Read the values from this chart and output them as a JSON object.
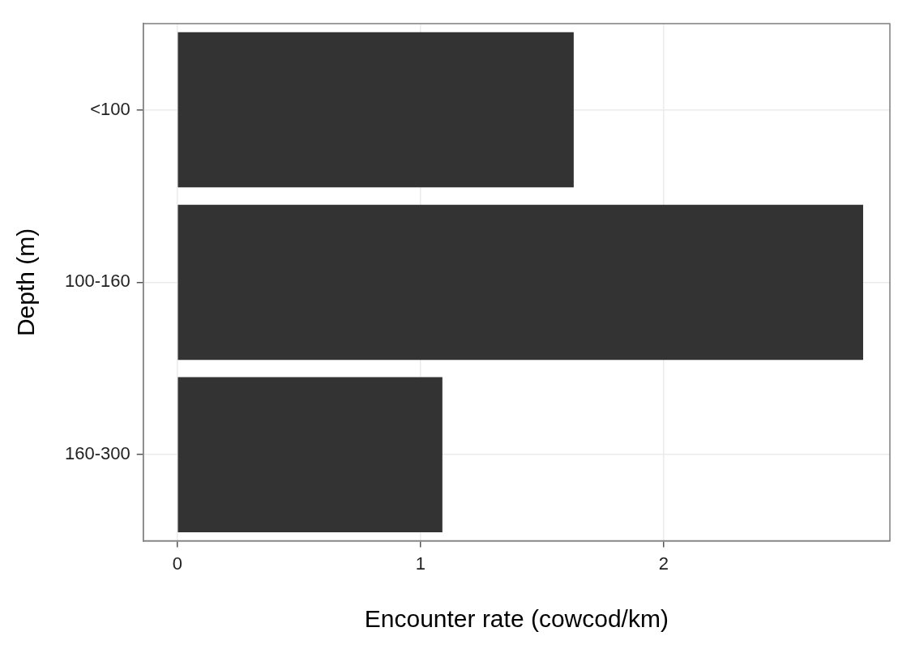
{
  "chart_data": {
    "type": "bar",
    "orientation": "horizontal",
    "xlabel": "Encounter rate (cowcod/km)",
    "ylabel": "Depth (m)",
    "categories": [
      "<100",
      "100-160",
      "160-300"
    ],
    "values": [
      1.63,
      2.82,
      1.09
    ],
    "color": "#333333",
    "xlim": [
      -0.14,
      2.93
    ],
    "xticks": [
      0,
      1,
      2
    ],
    "grid": true
  }
}
